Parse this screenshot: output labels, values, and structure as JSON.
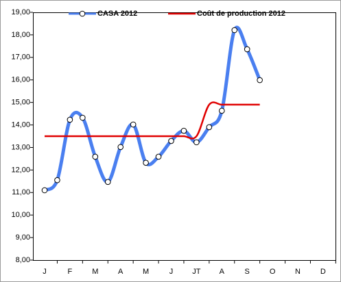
{
  "chart_data": {
    "type": "line",
    "categories": [
      "J",
      null,
      "F",
      null,
      "M",
      null,
      "A",
      null,
      "M",
      null,
      "J",
      null,
      "JT",
      null,
      "A",
      null,
      "S",
      null,
      "O",
      null,
      "N",
      null,
      "D",
      null
    ],
    "series": [
      {
        "name": "CASA 2012",
        "color": "#4a7ff0",
        "marker": "circle",
        "values": [
          11.1,
          11.55,
          14.23,
          14.32,
          12.59,
          11.47,
          13.02,
          14.02,
          12.32,
          12.59,
          13.29,
          13.74,
          13.23,
          13.9,
          14.63,
          18.21,
          17.36,
          15.99,
          null,
          null,
          null,
          null,
          null,
          null
        ]
      },
      {
        "name": "Coût de production 2012",
        "color": "#e00000",
        "values": [
          13.5,
          13.5,
          13.5,
          13.5,
          13.5,
          13.5,
          13.5,
          13.5,
          13.5,
          13.5,
          13.5,
          13.5,
          13.5,
          14.9,
          14.9,
          14.9,
          14.9,
          14.9,
          null,
          null,
          null,
          null,
          null,
          null
        ]
      }
    ],
    "ylim": [
      8,
      19
    ],
    "yticks": [
      {
        "value": 8,
        "label": "8,00"
      },
      {
        "value": 9,
        "label": "9,00"
      },
      {
        "value": 10,
        "label": "10,00"
      },
      {
        "value": 11,
        "label": "11,00"
      },
      {
        "value": 12,
        "label": "12,00"
      },
      {
        "value": 13,
        "label": "13,00"
      },
      {
        "value": 14,
        "label": "14,00"
      },
      {
        "value": 15,
        "label": "15,00"
      },
      {
        "value": 16,
        "label": "16,00"
      },
      {
        "value": 17,
        "label": "17,00"
      },
      {
        "value": 18,
        "label": "18,00"
      },
      {
        "value": 19,
        "label": "19,00"
      }
    ],
    "grid": false,
    "legend": "top",
    "smooth": true
  }
}
